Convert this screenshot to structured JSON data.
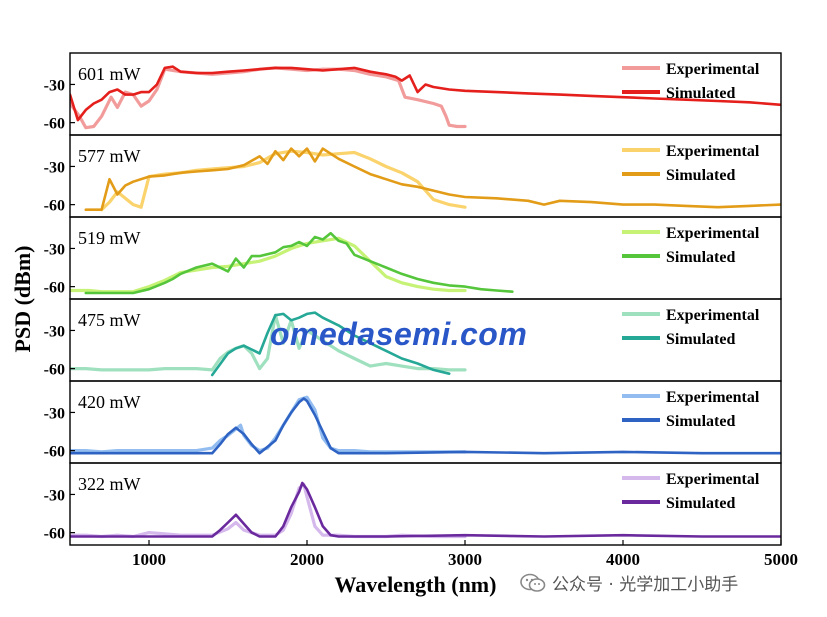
{
  "chart_data": {
    "type": "line",
    "xlabel": "Wavelength (nm)",
    "ylabel": "PSD (dBm)",
    "xlim": [
      500,
      5000
    ],
    "ylim": [
      -65,
      -10
    ],
    "xticks": [
      1000,
      2000,
      3000,
      4000,
      5000
    ],
    "yticks": [
      -30,
      -60
    ],
    "legend_position": "top-right",
    "panels": [
      {
        "label": "601 mW",
        "exp_color": "#f29b9b",
        "sim_color": "#e41f1c",
        "series": [
          {
            "name": "Experimental",
            "x": [
              500,
              560,
              600,
              650,
              700,
              760,
              800,
              850,
              900,
              950,
              1000,
              1050,
              1100,
              1200,
              1300,
              1400,
              1500,
              1600,
              1700,
              1800,
              1900,
              2000,
              2100,
              2200,
              2300,
              2400,
              2500,
              2580,
              2620,
              2700,
              2800,
              2850,
              2880,
              2900,
              2950,
              3000
            ],
            "y": [
              -45,
              -55,
              -64,
              -63,
              -55,
              -40,
              -48,
              -36,
              -38,
              -47,
              -43,
              -34,
              -18,
              -20,
              -21,
              -22,
              -21,
              -20,
              -18,
              -17,
              -18,
              -19,
              -18,
              -18,
              -19,
              -22,
              -24,
              -27,
              -40,
              -42,
              -45,
              -47,
              -55,
              -62,
              -63,
              -63
            ]
          },
          {
            "name": "Simulated",
            "x": [
              500,
              550,
              600,
              650,
              700,
              750,
              800,
              850,
              900,
              950,
              1000,
              1050,
              1100,
              1150,
              1200,
              1300,
              1400,
              1500,
              1600,
              1700,
              1800,
              1900,
              2000,
              2100,
              2200,
              2300,
              2400,
              2500,
              2560,
              2600,
              2650,
              2700,
              2750,
              2800,
              2900,
              3000,
              3200,
              3400,
              3600,
              3800,
              4000,
              4200,
              4400,
              4600,
              4800,
              5000
            ],
            "y": [
              -38,
              -58,
              -50,
              -45,
              -42,
              -36,
              -34,
              -38,
              -38,
              -36,
              -36,
              -30,
              -17,
              -16,
              -20,
              -21,
              -21,
              -20,
              -19,
              -18,
              -17,
              -17,
              -18,
              -19,
              -18,
              -17,
              -20,
              -22,
              -24,
              -27,
              -23,
              -36,
              -30,
              -32,
              -34,
              -35,
              -36,
              -37,
              -38,
              -39,
              -40,
              -41,
              -42,
              -43,
              -44,
              -46
            ]
          }
        ]
      },
      {
        "label": "577 mW",
        "exp_color": "#fbd36d",
        "sim_color": "#e29c18",
        "series": [
          {
            "name": "Experimental",
            "x": [
              700,
              750,
              800,
              850,
              900,
              950,
              1000,
              1100,
              1200,
              1300,
              1400,
              1500,
              1600,
              1700,
              1800,
              1900,
              2000,
              2100,
              2200,
              2300,
              2400,
              2500,
              2600,
              2700,
              2800,
              2900,
              3000
            ],
            "y": [
              -64,
              -58,
              -50,
              -55,
              -60,
              -62,
              -38,
              -36,
              -35,
              -33,
              -32,
              -31,
              -30,
              -27,
              -20,
              -18,
              -19,
              -21,
              -20,
              -19,
              -24,
              -30,
              -35,
              -42,
              -56,
              -60,
              -62
            ]
          },
          {
            "name": "Simulated",
            "x": [
              600,
              700,
              750,
              800,
              850,
              900,
              1000,
              1100,
              1200,
              1300,
              1400,
              1500,
              1600,
              1700,
              1750,
              1800,
              1850,
              1900,
              1950,
              2000,
              2050,
              2100,
              2150,
              2200,
              2300,
              2400,
              2500,
              2600,
              2700,
              2800,
              2900,
              3000,
              3200,
              3400,
              3500,
              3600,
              3800,
              4000,
              4200,
              4400,
              4600,
              4800,
              5000
            ],
            "y": [
              -64,
              -64,
              -40,
              -52,
              -45,
              -42,
              -38,
              -37,
              -35,
              -34,
              -33,
              -32,
              -29,
              -22,
              -28,
              -18,
              -25,
              -16,
              -22,
              -16,
              -26,
              -16,
              -20,
              -24,
              -30,
              -36,
              -40,
              -44,
              -46,
              -49,
              -52,
              -54,
              -55,
              -57,
              -60,
              -57,
              -58,
              -60,
              -60,
              -61,
              -62,
              -61,
              -60
            ]
          }
        ]
      },
      {
        "label": "519 mW",
        "exp_color": "#c6f276",
        "sim_color": "#55c63c",
        "series": [
          {
            "name": "Experimental",
            "x": [
              500,
              620,
              700,
              800,
              900,
              1000,
              1100,
              1200,
              1300,
              1400,
              1500,
              1600,
              1700,
              1800,
              1900,
              2000,
              2100,
              2200,
              2300,
              2400,
              2500,
              2600,
              2700,
              2800,
              2900,
              3000
            ],
            "y": [
              -63,
              -63,
              -64,
              -64,
              -64,
              -60,
              -55,
              -49,
              -47,
              -45,
              -44,
              -42,
              -40,
              -36,
              -30,
              -26,
              -24,
              -22,
              -28,
              -40,
              -52,
              -57,
              -60,
              -62,
              -63,
              -63
            ]
          },
          {
            "name": "Simulated",
            "x": [
              600,
              700,
              800,
              900,
              1000,
              1100,
              1150,
              1200,
              1300,
              1400,
              1500,
              1550,
              1600,
              1650,
              1700,
              1800,
              1850,
              1900,
              1950,
              2000,
              2050,
              2100,
              2150,
              2200,
              2250,
              2300,
              2400,
              2500,
              2600,
              2700,
              2800,
              2900,
              3000,
              3100,
              3200,
              3300
            ],
            "y": [
              -65,
              -65,
              -65,
              -65,
              -62,
              -57,
              -54,
              -50,
              -45,
              -42,
              -48,
              -38,
              -45,
              -36,
              -36,
              -33,
              -29,
              -28,
              -25,
              -28,
              -21,
              -23,
              -18,
              -24,
              -26,
              -35,
              -40,
              -45,
              -50,
              -54,
              -57,
              -59,
              -60,
              -62,
              -63,
              -64
            ]
          }
        ]
      },
      {
        "label": "475 mW",
        "exp_color": "#9fe0bf",
        "sim_color": "#26a897",
        "series": [
          {
            "name": "Experimental",
            "x": [
              500,
              600,
              700,
              800,
              900,
              1000,
              1100,
              1200,
              1300,
              1400,
              1450,
              1500,
              1550,
              1600,
              1650,
              1700,
              1750,
              1800,
              1850,
              1900,
              1950,
              2000,
              2100,
              2200,
              2300,
              2400,
              2500,
              2600,
              2700,
              2800,
              2900,
              3000
            ],
            "y": [
              -60,
              -60,
              -61,
              -61,
              -61,
              -61,
              -60,
              -60,
              -60,
              -61,
              -52,
              -47,
              -44,
              -42,
              -48,
              -60,
              -52,
              -18,
              -40,
              -22,
              -44,
              -30,
              -38,
              -46,
              -52,
              -58,
              -56,
              -58,
              -60,
              -60,
              -61,
              -61
            ]
          },
          {
            "name": "Simulated",
            "x": [
              1400,
              1500,
              1550,
              1600,
              1650,
              1700,
              1750,
              1800,
              1850,
              1900,
              1950,
              2000,
              2050,
              2100,
              2200,
              2300,
              2400,
              2500,
              2600,
              2700,
              2800,
              2900
            ],
            "y": [
              -65,
              -48,
              -44,
              -42,
              -45,
              -48,
              -32,
              -18,
              -17,
              -22,
              -20,
              -17,
              -16,
              -20,
              -26,
              -34,
              -40,
              -46,
              -52,
              -56,
              -61,
              -64
            ]
          }
        ]
      },
      {
        "label": "420 mW",
        "exp_color": "#93bdf0",
        "sim_color": "#2f63c3",
        "series": [
          {
            "name": "Experimental",
            "x": [
              500,
              600,
              700,
              800,
              900,
              1000,
              1100,
              1200,
              1300,
              1400,
              1450,
              1500,
              1550,
              1580,
              1600,
              1650,
              1700,
              1750,
              1800,
              1850,
              1900,
              1950,
              2000,
              2050,
              2100,
              2150,
              2200,
              2300,
              2400,
              2500,
              2600,
              2700,
              2800,
              2900,
              3000
            ],
            "y": [
              -60,
              -60,
              -61,
              -60,
              -60,
              -60,
              -60,
              -60,
              -60,
              -58,
              -52,
              -48,
              -43,
              -40,
              -48,
              -56,
              -60,
              -58,
              -50,
              -40,
              -30,
              -20,
              -18,
              -28,
              -50,
              -58,
              -60,
              -60,
              -61,
              -61,
              -61,
              -61,
              -61,
              -61,
              -61
            ]
          },
          {
            "name": "Simulated",
            "x": [
              500,
              1000,
              1400,
              1450,
              1500,
              1550,
              1600,
              1650,
              1700,
              1800,
              1850,
              1900,
              1950,
              1980,
              2000,
              2050,
              2100,
              2150,
              2200,
              2500,
              3000,
              3500,
              4000,
              4500,
              5000
            ],
            "y": [
              -62,
              -62,
              -62,
              -55,
              -47,
              -42,
              -47,
              -55,
              -62,
              -52,
              -40,
              -30,
              -22,
              -19,
              -21,
              -32,
              -45,
              -58,
              -62,
              -62,
              -61,
              -62,
              -61,
              -62,
              -62
            ]
          }
        ]
      },
      {
        "label": "322 mW",
        "exp_color": "#d5b8ec",
        "sim_color": "#6a2a9e",
        "series": [
          {
            "name": "Experimental",
            "x": [
              500,
              600,
              700,
              800,
              900,
              1000,
              1100,
              1200,
              1300,
              1400,
              1500,
              1550,
              1600,
              1700,
              1800,
              1850,
              1900,
              1950,
              1980,
              2000,
              2050,
              2100,
              2200,
              2300,
              2400,
              2500,
              2600,
              2800,
              3000
            ],
            "y": [
              -62,
              -62,
              -63,
              -62,
              -63,
              -60,
              -61,
              -62,
              -62,
              -62,
              -57,
              -52,
              -58,
              -62,
              -62,
              -58,
              -45,
              -25,
              -22,
              -32,
              -55,
              -62,
              -62,
              -63,
              -63,
              -63,
              -62,
              -63,
              -63
            ]
          },
          {
            "name": "Simulated",
            "x": [
              500,
              1000,
              1400,
              1450,
              1500,
              1550,
              1600,
              1650,
              1700,
              1800,
              1850,
              1900,
              1950,
              1970,
              2000,
              2050,
              2100,
              2150,
              2200,
              2500,
              3000,
              3500,
              4000,
              4500,
              5000
            ],
            "y": [
              -63,
              -63,
              -63,
              -58,
              -52,
              -46,
              -53,
              -60,
              -63,
              -63,
              -55,
              -40,
              -28,
              -21,
              -26,
              -40,
              -55,
              -62,
              -63,
              -63,
              -62,
              -63,
              -62,
              -63,
              -63
            ]
          }
        ]
      }
    ]
  },
  "overlay": {
    "watermark": "omedasemi.com",
    "credit": "公众号 · 光学加工小助手"
  }
}
